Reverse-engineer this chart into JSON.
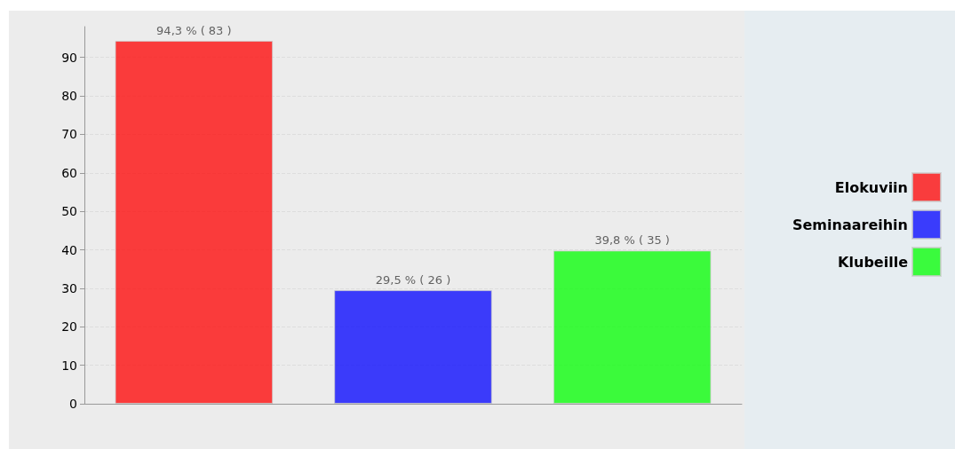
{
  "chart_data": {
    "type": "bar",
    "categories": [
      null,
      null,
      null
    ],
    "series": [
      {
        "name": "Elokuviin",
        "color": "#ff0000",
        "values": [
          94.3,
          null,
          null
        ],
        "value_labels": [
          "94,3 % ( 83 )",
          null,
          null
        ]
      },
      {
        "name": "Seminaareihin",
        "color": "#0000ff",
        "values": [
          null,
          29.5,
          null
        ],
        "value_labels": [
          null,
          "29,5 % ( 26 )",
          null
        ]
      },
      {
        "name": "Klubeille",
        "color": "#00ff00",
        "values": [
          null,
          null,
          39.8
        ],
        "value_labels": [
          null,
          null,
          "39,8 % ( 35 )"
        ]
      }
    ],
    "ylim": [
      0,
      98
    ],
    "yticks": [
      0,
      10,
      20,
      30,
      40,
      50,
      60,
      70,
      80,
      90
    ],
    "grid": "y",
    "legend": "right"
  }
}
